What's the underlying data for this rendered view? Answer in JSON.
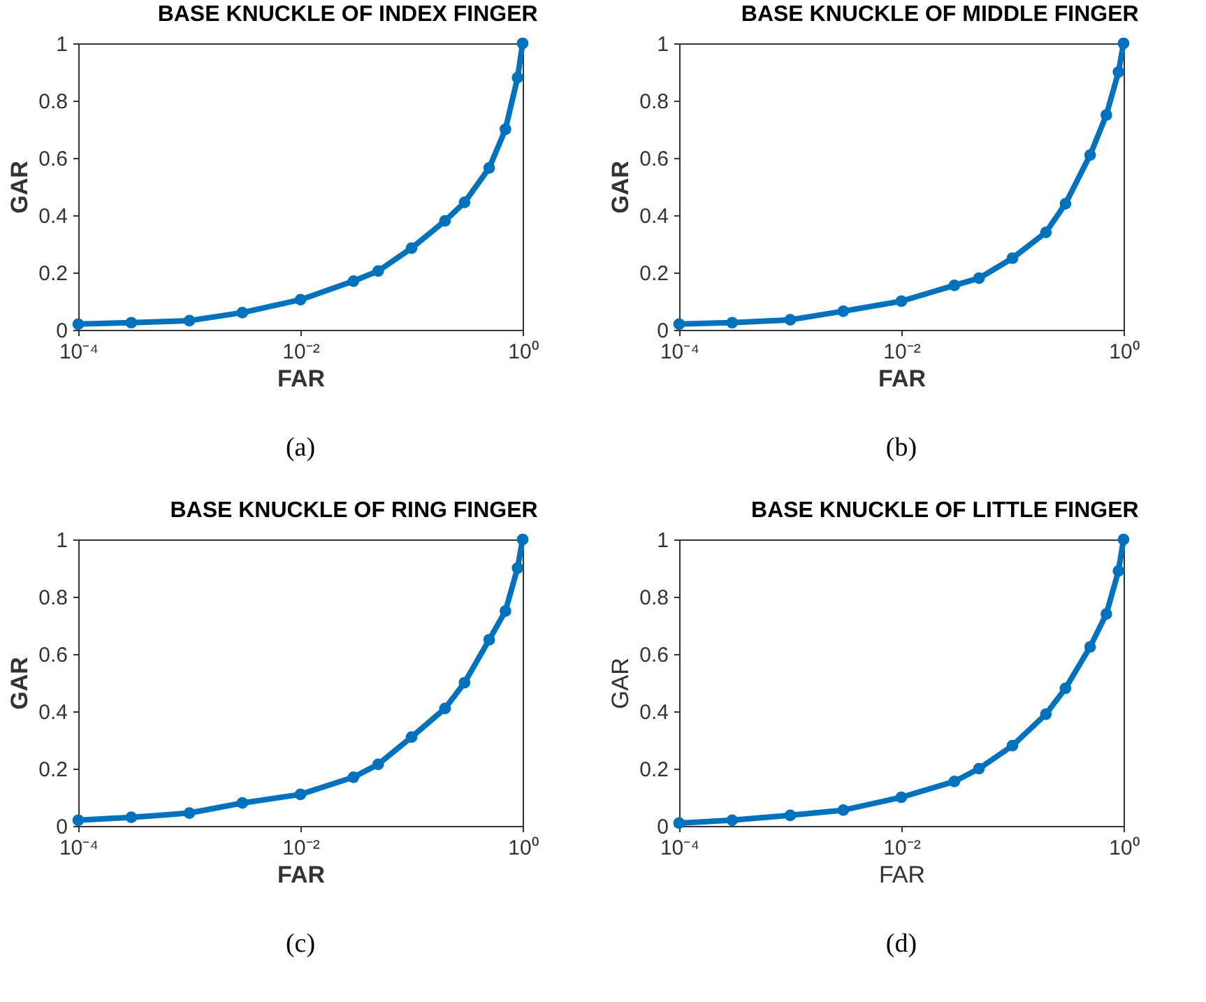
{
  "chart_data": [
    {
      "type": "line",
      "title": "BASE KNUCKLE OF INDEX FINGER",
      "xlabel": "FAR",
      "ylabel": "GAR",
      "log": "x",
      "grid": false,
      "marker": "circle",
      "line_style": "solid",
      "annotations": [
        "(a)"
      ],
      "xlim": [
        0.0001,
        1
      ],
      "ylim": [
        0,
        1
      ],
      "xticks": [
        {
          "value": 0.0001,
          "label": "10⁻⁴"
        },
        {
          "value": 0.01,
          "label": "10⁻²"
        },
        {
          "value": 1,
          "label": "10⁰"
        }
      ],
      "yticks": [
        0,
        0.2,
        0.4,
        0.6,
        0.8,
        1
      ],
      "x": [
        0.0001,
        0.0003,
        0.001,
        0.003,
        0.01,
        0.03,
        0.05,
        0.1,
        0.2,
        0.3,
        0.5,
        0.7,
        0.9,
        1
      ],
      "series": [
        {
          "color": "#0072bd",
          "values": [
            0.02,
            0.025,
            0.032,
            0.06,
            0.105,
            0.17,
            0.205,
            0.285,
            0.38,
            0.445,
            0.565,
            0.7,
            0.88,
            1
          ]
        }
      ]
    },
    {
      "type": "line",
      "title": "BASE KNUCKLE OF MIDDLE FINGER",
      "xlabel": "FAR",
      "ylabel": "GAR",
      "log": "x",
      "grid": false,
      "marker": "circle",
      "line_style": "solid",
      "annotations": [
        "(b)"
      ],
      "xlim": [
        0.0001,
        1
      ],
      "ylim": [
        0,
        1
      ],
      "xticks": [
        {
          "value": 0.0001,
          "label": "10⁻⁴"
        },
        {
          "value": 0.01,
          "label": "10⁻²"
        },
        {
          "value": 1,
          "label": "10⁰"
        }
      ],
      "yticks": [
        0,
        0.2,
        0.4,
        0.6,
        0.8,
        1
      ],
      "x": [
        0.0001,
        0.0003,
        0.001,
        0.003,
        0.01,
        0.03,
        0.05,
        0.1,
        0.2,
        0.3,
        0.5,
        0.7,
        0.9,
        1
      ],
      "series": [
        {
          "color": "#0072bd",
          "values": [
            0.02,
            0.025,
            0.035,
            0.065,
            0.1,
            0.155,
            0.18,
            0.25,
            0.34,
            0.44,
            0.61,
            0.75,
            0.9,
            1
          ]
        }
      ]
    },
    {
      "type": "line",
      "title": "BASE KNUCKLE OF RING FINGER",
      "xlabel": "FAR",
      "ylabel": "GAR",
      "log": "x",
      "grid": false,
      "marker": "circle",
      "line_style": "solid",
      "annotations": [
        "(c)"
      ],
      "xlim": [
        0.0001,
        1
      ],
      "ylim": [
        0,
        1
      ],
      "xticks": [
        {
          "value": 0.0001,
          "label": "10⁻⁴"
        },
        {
          "value": 0.01,
          "label": "10⁻²"
        },
        {
          "value": 1,
          "label": "10⁰"
        }
      ],
      "yticks": [
        0,
        0.2,
        0.4,
        0.6,
        0.8,
        1
      ],
      "x": [
        0.0001,
        0.0003,
        0.001,
        0.003,
        0.01,
        0.03,
        0.05,
        0.1,
        0.2,
        0.3,
        0.5,
        0.7,
        0.9,
        1
      ],
      "series": [
        {
          "color": "#0072bd",
          "values": [
            0.02,
            0.03,
            0.045,
            0.08,
            0.11,
            0.17,
            0.215,
            0.31,
            0.41,
            0.5,
            0.65,
            0.75,
            0.9,
            1
          ]
        }
      ]
    },
    {
      "type": "line",
      "title": "BASE KNUCKLE OF LITTLE FINGER",
      "xlabel": "FAR",
      "ylabel": "GAR",
      "log": "x",
      "grid": false,
      "marker": "circle",
      "line_style": "solid",
      "annotations": [
        "(d)"
      ],
      "xlim": [
        0.0001,
        1
      ],
      "ylim": [
        0,
        1
      ],
      "xticks": [
        {
          "value": 0.0001,
          "label": "10⁻⁴"
        },
        {
          "value": 0.01,
          "label": "10⁻²"
        },
        {
          "value": 1,
          "label": "10⁰"
        }
      ],
      "yticks": [
        0,
        0.2,
        0.4,
        0.6,
        0.8,
        1
      ],
      "x": [
        0.0001,
        0.0003,
        0.001,
        0.003,
        0.01,
        0.03,
        0.05,
        0.1,
        0.2,
        0.3,
        0.5,
        0.7,
        0.9,
        1
      ],
      "series": [
        {
          "color": "#0072bd",
          "values": [
            0.01,
            0.02,
            0.037,
            0.055,
            0.1,
            0.155,
            0.2,
            0.28,
            0.39,
            0.48,
            0.625,
            0.74,
            0.89,
            1
          ]
        }
      ]
    }
  ]
}
